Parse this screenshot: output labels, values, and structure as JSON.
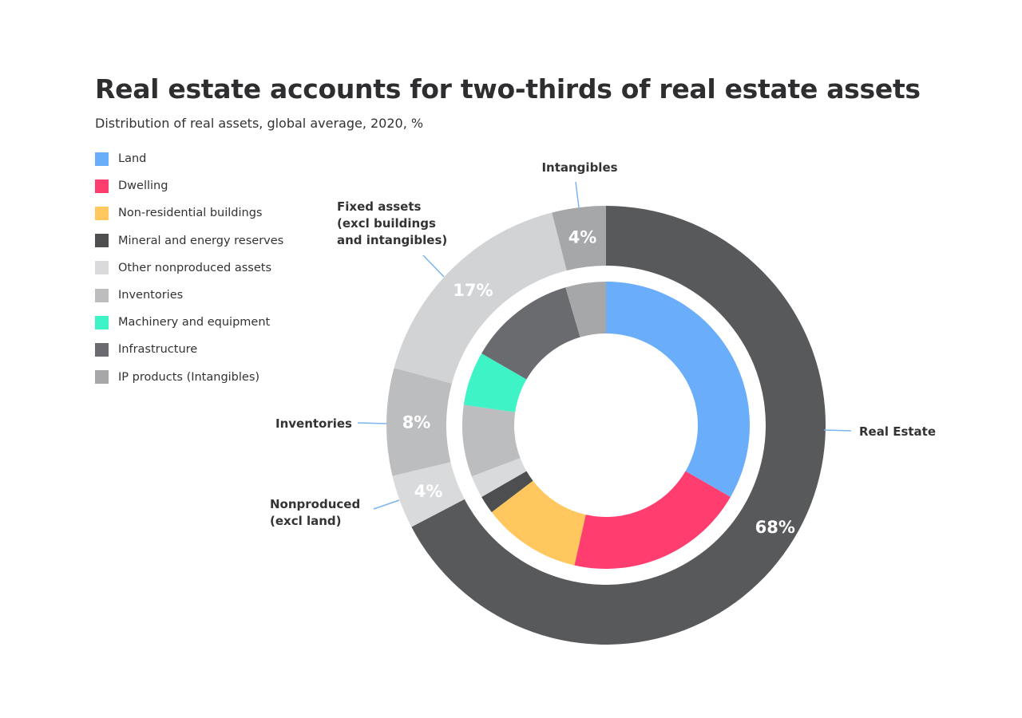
{
  "title": "Real estate accounts for two-thirds of real estate assets",
  "subtitle": "Distribution of real assets, global average, 2020, %",
  "legend": [
    {
      "label": "Land",
      "color": "#6aaefb"
    },
    {
      "label": "Dwelling",
      "color": "#ff3e6f"
    },
    {
      "label": "Non-residential buildings",
      "color": "#ffc75e"
    },
    {
      "label": "Mineral and energy reserves",
      "color": "#4d4e50"
    },
    {
      "label": "Other nonproduced assets",
      "color": "#d9dadb"
    },
    {
      "label": "Inventories",
      "color": "#bcbdbf"
    },
    {
      "label": "Machinery and equipment",
      "color": "#3ef3c6"
    },
    {
      "label": "Infrastructure",
      "color": "#6a6b6e"
    },
    {
      "label": "IP products (Intangibles)",
      "color": "#a6a7a9"
    }
  ],
  "chart_data": {
    "type": "pie",
    "outer_ring": {
      "series": [
        {
          "name": "Real Estate",
          "value": 68,
          "label": "68%",
          "color": "#58595b"
        },
        {
          "name": "Nonproduced (excl land)",
          "value": 4,
          "label": "4%",
          "color": "#d9dadb"
        },
        {
          "name": "Inventories",
          "value": 8,
          "label": "8%",
          "color": "#bcbdbf"
        },
        {
          "name": "Fixed assets (excl buildings and intangibles)",
          "value": 17,
          "label": "17%",
          "color": "#d2d3d5"
        },
        {
          "name": "Intangibles",
          "value": 4,
          "label": "4%",
          "color": "#a6a7a9"
        }
      ]
    },
    "inner_ring": {
      "series": [
        {
          "name": "Land",
          "value": 33,
          "color": "#6aaefb"
        },
        {
          "name": "Dwelling",
          "value": 20,
          "color": "#ff3e6f"
        },
        {
          "name": "Non-residential buildings",
          "value": 11,
          "color": "#ffc75e"
        },
        {
          "name": "Mineral and energy reserves",
          "value": 2,
          "color": "#4d4e50"
        },
        {
          "name": "Other nonproduced assets",
          "value": 2.5,
          "color": "#d9dadb"
        },
        {
          "name": "Inventories",
          "value": 8,
          "color": "#bcbdbf"
        },
        {
          "name": "Machinery and equipment",
          "value": 6,
          "color": "#3ef3c6"
        },
        {
          "name": "Infrastructure",
          "value": 12,
          "color": "#6a6b6e"
        },
        {
          "name": "IP products (Intangibles)",
          "value": 4.5,
          "color": "#a6a7a9"
        }
      ]
    },
    "callouts": {
      "real_estate": "Real Estate",
      "intangibles": "Intangibles",
      "fixed_assets": [
        "Fixed assets",
        "(excl buildings",
        "and intangibles)"
      ],
      "inventories": "Inventories",
      "nonproduced": [
        "Nonproduced",
        "(excl land)"
      ]
    },
    "colors": {
      "callout_line": "#7ab4ee"
    }
  }
}
